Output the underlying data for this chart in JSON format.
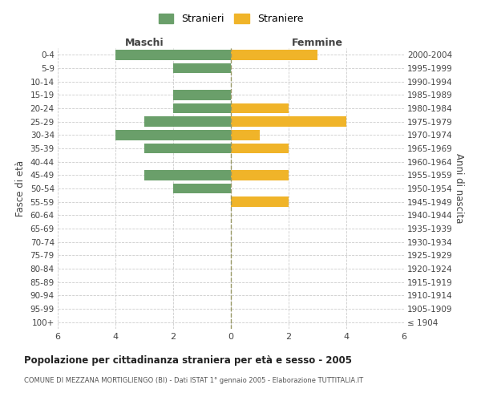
{
  "age_groups": [
    "100+",
    "95-99",
    "90-94",
    "85-89",
    "80-84",
    "75-79",
    "70-74",
    "65-69",
    "60-64",
    "55-59",
    "50-54",
    "45-49",
    "40-44",
    "35-39",
    "30-34",
    "25-29",
    "20-24",
    "15-19",
    "10-14",
    "5-9",
    "0-4"
  ],
  "birth_years": [
    "≤ 1904",
    "1905-1909",
    "1910-1914",
    "1915-1919",
    "1920-1924",
    "1925-1929",
    "1930-1934",
    "1935-1939",
    "1940-1944",
    "1945-1949",
    "1950-1954",
    "1955-1959",
    "1960-1964",
    "1965-1969",
    "1970-1974",
    "1975-1979",
    "1980-1984",
    "1985-1989",
    "1990-1994",
    "1995-1999",
    "2000-2004"
  ],
  "males": [
    0,
    0,
    0,
    0,
    0,
    0,
    0,
    0,
    0,
    0,
    2,
    3,
    0,
    3,
    4,
    3,
    2,
    2,
    0,
    2,
    4
  ],
  "females": [
    0,
    0,
    0,
    0,
    0,
    0,
    0,
    0,
    0,
    2,
    0,
    2,
    0,
    2,
    1,
    4,
    2,
    0,
    0,
    0,
    3
  ],
  "male_color": "#6a9f6a",
  "female_color": "#f0b429",
  "title": "Popolazione per cittadinanza straniera per età e sesso - 2005",
  "subtitle": "COMUNE DI MEZZANA MORTIGLIENGO (BI) - Dati ISTAT 1° gennaio 2005 - Elaborazione TUTTITALIA.IT",
  "ylabel_left": "Fasce di età",
  "ylabel_right": "Anni di nascita",
  "xlabel_left": "Maschi",
  "xlabel_right": "Femmine",
  "legend_male": "Stranieri",
  "legend_female": "Straniere",
  "xlim": 6,
  "bg_color": "#ffffff",
  "grid_color": "#cccccc",
  "center_line_color": "#999966",
  "bar_height": 0.75
}
